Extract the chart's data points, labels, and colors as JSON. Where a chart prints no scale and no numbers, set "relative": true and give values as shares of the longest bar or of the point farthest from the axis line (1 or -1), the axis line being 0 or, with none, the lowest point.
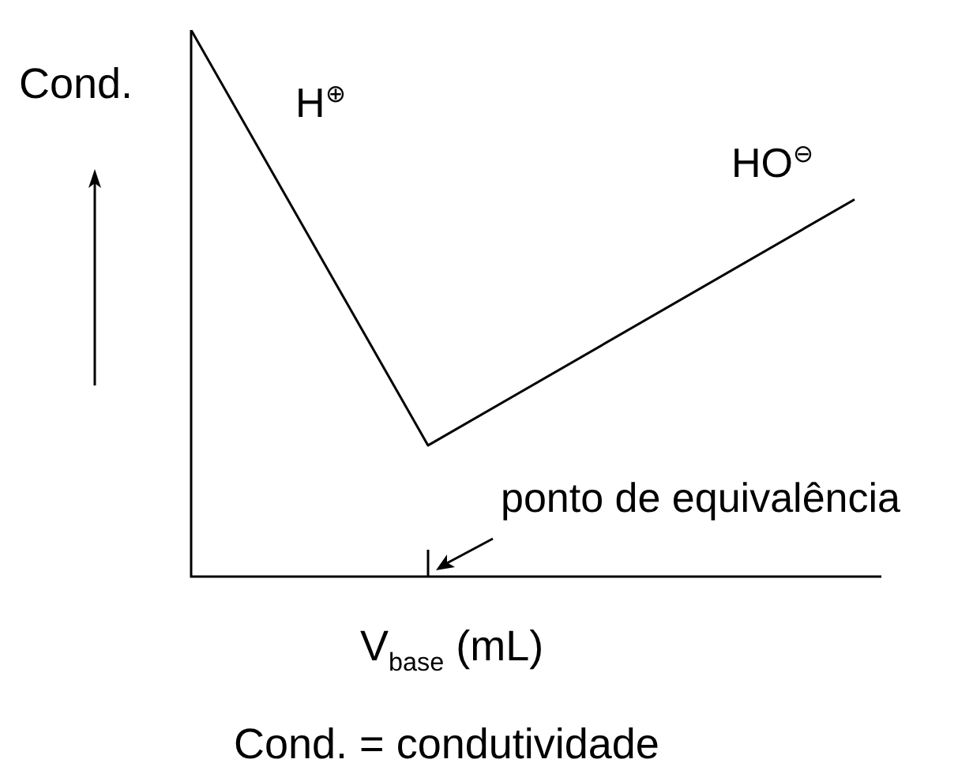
{
  "chart_data": {
    "type": "line",
    "relative": true,
    "ylabel": "Cond.",
    "xlabel": "V$_{base}$ (mL)",
    "color": "#000000",
    "marker": "none",
    "categories": [
      null,
      null,
      null,
      null,
      null,
      null,
      null,
      null,
      null,
      null,
      null,
      null,
      null,
      null,
      null
    ],
    "values": [
      1,
      null,
      null,
      null,
      null,
      0.24,
      null,
      null,
      null,
      null,
      null,
      null,
      null,
      null,
      0.69
    ],
    "annotations": [
      "H$^{⊕}$",
      "HO$^{⊖}$",
      "ponto de equivalência",
      "Cond. = condutividade"
    ]
  }
}
